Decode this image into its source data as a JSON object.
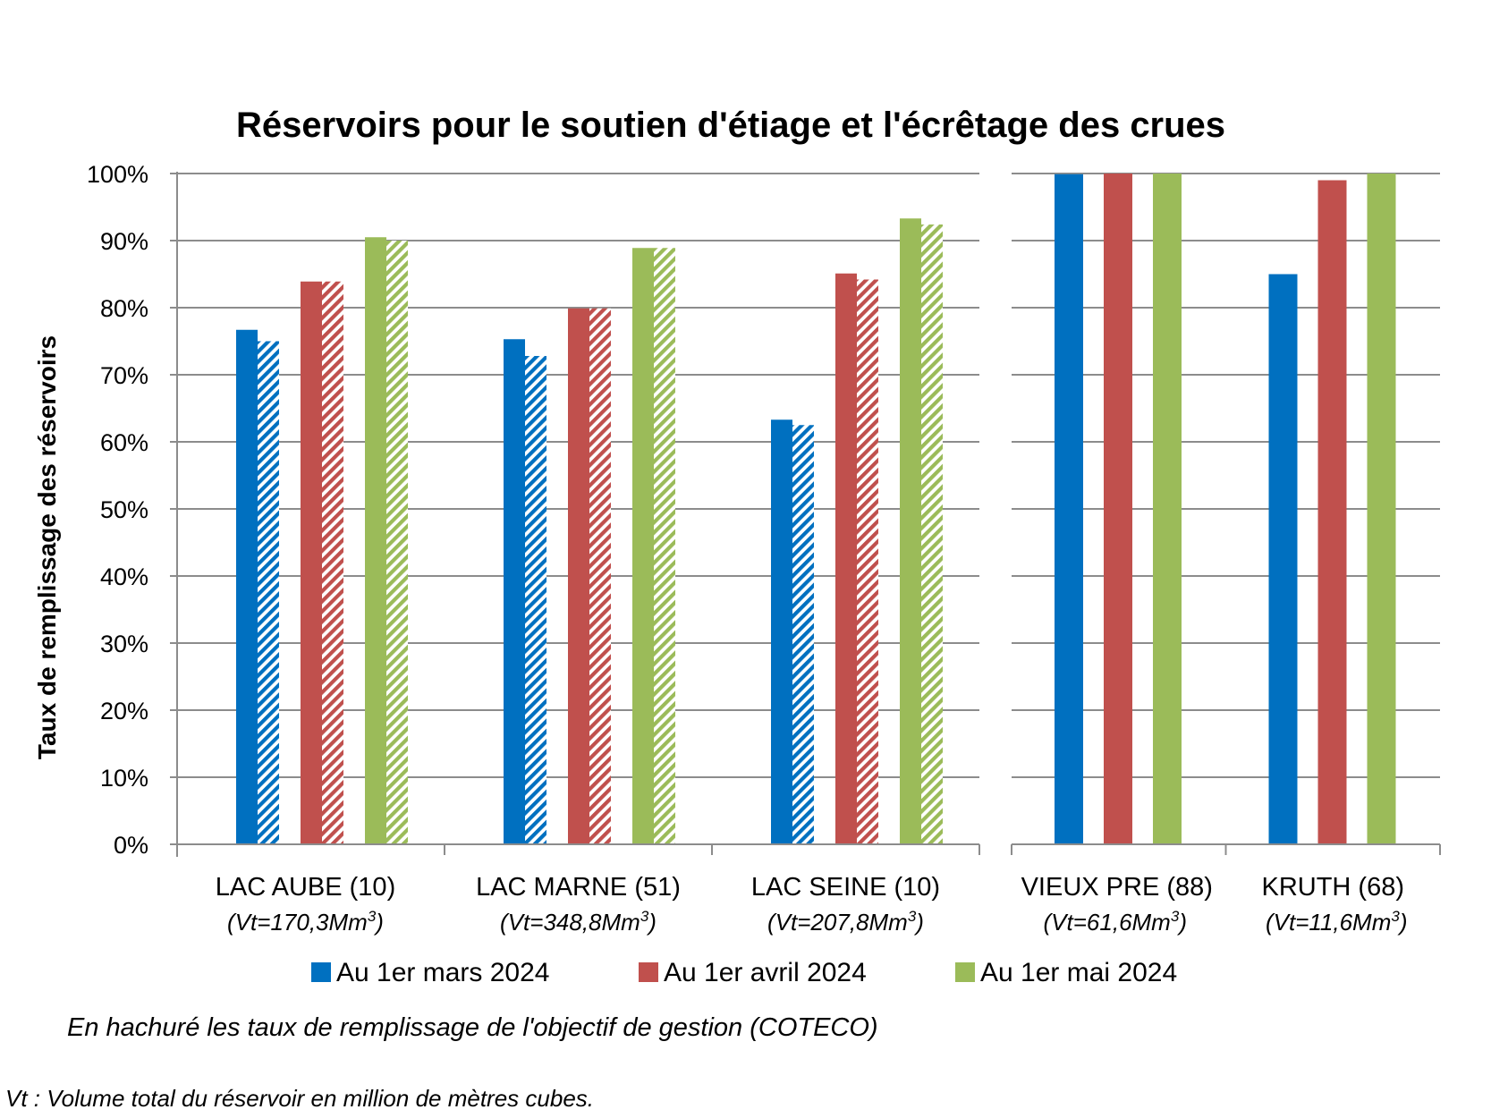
{
  "chart_data": {
    "type": "bar",
    "title": "Réservoirs pour le soutien d'étiage et l'écrêtage des crues",
    "ylabel": "Taux de remplissage des réservoirs",
    "ylim": [
      0,
      100
    ],
    "yticks": [
      "0%",
      "10%",
      "20%",
      "30%",
      "40%",
      "50%",
      "60%",
      "70%",
      "80%",
      "90%",
      "100%"
    ],
    "grid": true,
    "legend_position": "bottom",
    "categories": [
      {
        "name": "LAC AUBE (10)",
        "volume_prefix": "(Vt=170,3Mm",
        "volume_sup": "3",
        "volume_suffix": ")"
      },
      {
        "name": "LAC MARNE (51)",
        "volume_prefix": "(Vt=348,8Mm",
        "volume_sup": "3",
        "volume_suffix": ")"
      },
      {
        "name": "LAC SEINE (10)",
        "volume_prefix": "(Vt=207,8Mm",
        "volume_sup": "3",
        "volume_suffix": ")"
      },
      {
        "name": "VIEUX PRE (88)",
        "volume_prefix": "(Vt=61,6Mm",
        "volume_sup": "3",
        "volume_suffix": ")"
      },
      {
        "name": "KRUTH (68)",
        "volume_prefix": "(Vt=11,6Mm",
        "volume_sup": "3",
        "volume_suffix": ")"
      }
    ],
    "series": [
      {
        "name": "Au 1er mars 2024",
        "color": "#0070C0",
        "values": [
          76.7,
          75.3,
          63.3,
          99.9,
          85.0
        ],
        "objective": [
          75.0,
          72.8,
          62.5,
          null,
          null
        ]
      },
      {
        "name": "Au 1er avril 2024",
        "color": "#C0504D",
        "values": [
          83.9,
          79.9,
          85.1,
          100.0,
          99.0
        ],
        "objective": [
          83.9,
          79.9,
          84.2,
          null,
          null
        ]
      },
      {
        "name": "Au 1er mai 2024",
        "color": "#9BBB59",
        "values": [
          90.5,
          88.9,
          93.3,
          100.0,
          100.0
        ],
        "objective": [
          90.0,
          88.9,
          92.4,
          null,
          null
        ]
      }
    ],
    "note": "En hachuré les taux de remplissage de l'objectif de gestion (COTECO)",
    "footnote": "Vt : Volume total du réservoir en million de mètres cubes."
  }
}
